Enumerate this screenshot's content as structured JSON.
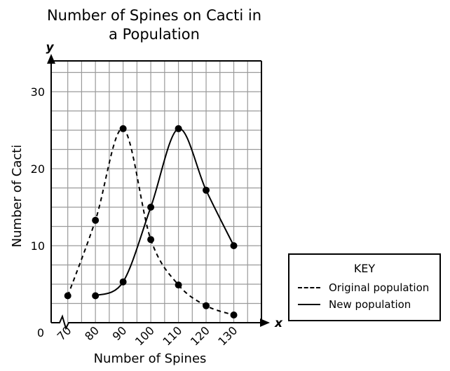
{
  "chart_data": {
    "type": "line",
    "title_lines": [
      "Number of Spines on Cacti in",
      "a Population"
    ],
    "xlabel": "Number of Spines",
    "ylabel": "Number of Cacti",
    "x_axis_letter": "x",
    "y_axis_letter": "y",
    "origin_label": "0",
    "x_ticks": [
      70,
      80,
      90,
      100,
      110,
      120,
      130
    ],
    "y_ticks": [
      10,
      20,
      30
    ],
    "xlim": [
      64,
      140
    ],
    "ylim": [
      0,
      34
    ],
    "grid": true,
    "legend_title": "KEY",
    "legend_position": "right",
    "series": [
      {
        "name": "Original population",
        "style": "dashed",
        "x": [
          70,
          80,
          90,
          100,
          110,
          120,
          130
        ],
        "y": [
          3.5,
          13.3,
          25.2,
          10.8,
          4.9,
          2.2,
          1.0
        ]
      },
      {
        "name": "New population",
        "style": "solid",
        "x": [
          80,
          90,
          100,
          110,
          120,
          130
        ],
        "y": [
          3.5,
          5.3,
          15.0,
          25.2,
          17.2,
          10.0
        ]
      }
    ]
  }
}
